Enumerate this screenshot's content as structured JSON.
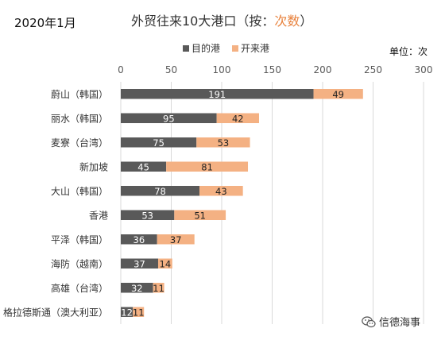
{
  "date_label": "2020年1月",
  "title": {
    "main": "外贸往来10大港口（按：",
    "highlight": "次数",
    "suffix": "）"
  },
  "unit_label": "单位：次",
  "watermark": "信德海事",
  "colors": {
    "series_1": "#595959",
    "series_2": "#f4b183",
    "highlight": "#e8823d",
    "grid": "#d9d9d9",
    "axis_text": "#595959"
  },
  "chart_data": {
    "type": "bar",
    "orientation": "horizontal",
    "stacked": true,
    "categories": [
      "蔚山（韩国）",
      "丽水（韩国）",
      "麦寮（台湾）",
      "新加坡",
      "大山（韩国）",
      "香港",
      "平泽（韩国）",
      "海防（越南）",
      "高雄（台湾）",
      "格拉德斯通（澳大利亚）"
    ],
    "series": [
      {
        "name": "目的港",
        "values": [
          191,
          95,
          75,
          45,
          78,
          53,
          36,
          37,
          32,
          12
        ]
      },
      {
        "name": "开来港",
        "values": [
          49,
          42,
          53,
          81,
          43,
          51,
          37,
          14,
          11,
          11
        ]
      }
    ],
    "xlim": [
      0,
      300
    ],
    "ticks": [
      0,
      50,
      100,
      150,
      200,
      250,
      300
    ],
    "tick_position": "top",
    "grid": true,
    "legend": "top-center",
    "data_labels": true
  }
}
